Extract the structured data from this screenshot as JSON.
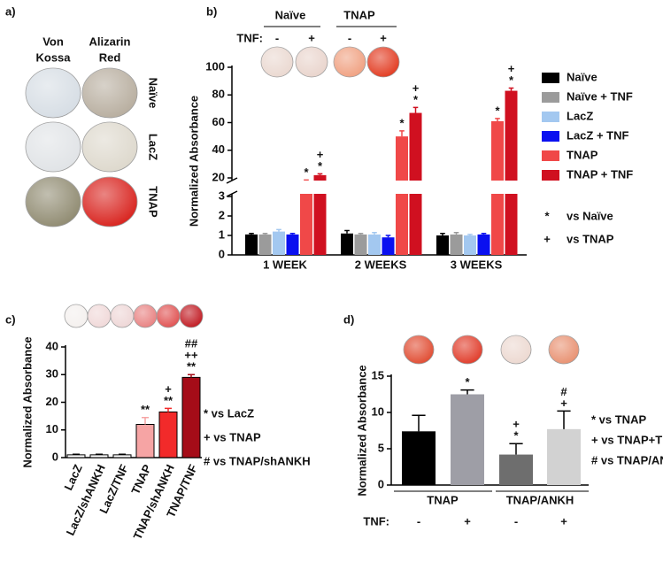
{
  "chart_data": [
    {
      "type": "image-grid",
      "panel_label": "a)",
      "column_labels": [
        [
          "Von",
          "Kossa"
        ],
        [
          "Alizarin",
          "Red"
        ]
      ],
      "row_labels": [
        "Naïve",
        "LacZ",
        "TNAP"
      ]
    },
    {
      "type": "bar",
      "panel_label": "b)",
      "y_label": "Normalized Absorbance",
      "header": {
        "groups": [
          "Naïve",
          "TNAP"
        ],
        "tnf_label": "TNF:",
        "tnf": [
          "-",
          "+",
          "-",
          "+"
        ]
      },
      "categories": [
        "1 WEEK",
        "2 WEEKS",
        "3 WEEKS"
      ],
      "series": [
        {
          "name": "Naïve",
          "color": "#000000",
          "values": [
            1.05,
            1.1,
            1.0
          ],
          "errors": [
            0.05,
            0.15,
            0.1
          ]
        },
        {
          "name": "Naïve + TNF",
          "color": "#9b9b9b",
          "values": [
            1.05,
            1.05,
            1.05
          ],
          "errors": [
            0.05,
            0.05,
            0.1
          ]
        },
        {
          "name": "LacZ",
          "color": "#a3c8f0",
          "values": [
            1.2,
            1.05,
            1.0
          ],
          "errors": [
            0.1,
            0.1,
            0.05
          ]
        },
        {
          "name": "LacZ + TNF",
          "color": "#0a10f0",
          "values": [
            1.05,
            0.9,
            1.05
          ],
          "errors": [
            0.05,
            0.1,
            0.05
          ]
        },
        {
          "name": "TNAP",
          "color": "#f04848",
          "values": [
            17,
            50,
            61
          ],
          "errors": [
            1.5,
            4,
            2
          ],
          "markers": [
            [
              "*"
            ],
            [
              "*"
            ],
            [
              "*"
            ]
          ]
        },
        {
          "name": "TNAP + TNF",
          "color": "#d01020",
          "values": [
            22,
            67,
            83
          ],
          "errors": [
            1,
            4,
            2
          ],
          "markers": [
            [
              "*",
              "+"
            ],
            [
              "*",
              "+"
            ],
            [
              "*",
              "+"
            ]
          ]
        }
      ],
      "ylim": [
        0,
        100
      ],
      "axis_break": [
        3,
        20
      ],
      "yticks": [
        0,
        1,
        2,
        3,
        20,
        40,
        60,
        80,
        100
      ],
      "notes": [
        {
          "symbol": "*",
          "text": "vs Naïve"
        },
        {
          "symbol": "+",
          "text": "vs TNAP"
        }
      ]
    },
    {
      "type": "bar",
      "panel_label": "c)",
      "y_label": "Normalized Absorbance",
      "categories": [
        "LacZ",
        "LacZ/shANKH",
        "LacZ/TNF",
        "TNAP",
        "TNAP/shANKH",
        "TNAP/TNF"
      ],
      "values": [
        1,
        1,
        1,
        12,
        16.5,
        29
      ],
      "errors": [
        0.2,
        0.2,
        0.2,
        2.5,
        1.3,
        1
      ],
      "colors": [
        "#ffffff",
        "#ffffff",
        "#ffffff",
        "#f6a4a4",
        "#f22a2a",
        "#a50c18"
      ],
      "markers": [
        null,
        null,
        null,
        [
          "**"
        ],
        [
          "**",
          "+"
        ],
        [
          "**",
          "++",
          "##"
        ]
      ],
      "ylim": [
        0,
        40
      ],
      "yticks": [
        0,
        10,
        20,
        30,
        40
      ],
      "notes": [
        "* vs LacZ",
        "+ vs TNAP",
        "# vs TNAP/shANKH"
      ]
    },
    {
      "type": "bar",
      "panel_label": "d)",
      "y_label": "Normalized Absorbance",
      "groups": [
        "TNAP",
        "TNAP/ANKH"
      ],
      "tnf_label": "TNF:",
      "categories": [
        "-",
        "+",
        "-",
        "+"
      ],
      "values": [
        7.4,
        12.5,
        4.2,
        7.7
      ],
      "errors": [
        2.2,
        0.6,
        1.5,
        2.5
      ],
      "colors": [
        "#000000",
        "#9e9ea6",
        "#6e6e6e",
        "#d2d2d2"
      ],
      "markers": [
        null,
        [
          "*"
        ],
        [
          "*",
          "+"
        ],
        [
          "+",
          "#"
        ]
      ],
      "ylim": [
        0,
        15
      ],
      "yticks": [
        0,
        5,
        10,
        15
      ],
      "notes": [
        "* vs TNAP",
        "+ vs TNAP+TNF",
        "# vs TNAP/ANKH"
      ]
    }
  ]
}
